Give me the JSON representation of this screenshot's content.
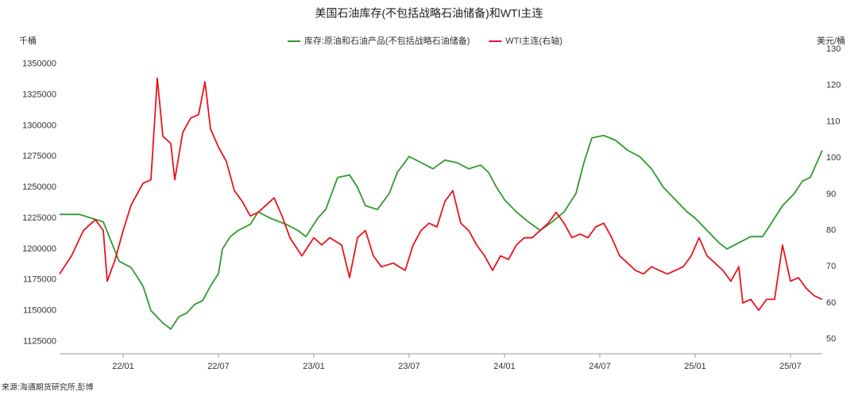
{
  "chart_data": {
    "type": "line",
    "title": "美国石油库存(不包括战略石油储备)和WTI主连",
    "ylabel": "千桶",
    "y2label": "美元/桶",
    "source": "来源:海通期货研究所,彭博",
    "xlim": [
      0,
      48
    ],
    "xticks": [
      {
        "value": 4,
        "label": "22/01"
      },
      {
        "value": 10,
        "label": "22/07"
      },
      {
        "value": 16,
        "label": "23/01"
      },
      {
        "value": 22,
        "label": "23/07"
      },
      {
        "value": 28,
        "label": "24/01"
      },
      {
        "value": 34,
        "label": "24/07"
      },
      {
        "value": 40,
        "label": "25/01"
      },
      {
        "value": 46,
        "label": "25/07"
      }
    ],
    "ylim": [
      1115000,
      1362000
    ],
    "yticks": [
      1125000,
      1150000,
      1175000,
      1200000,
      1225000,
      1250000,
      1275000,
      1300000,
      1325000,
      1350000
    ],
    "y2lim": [
      46,
      130
    ],
    "y2ticks": [
      50,
      60,
      70,
      80,
      90,
      100,
      110,
      120,
      130
    ],
    "legend": "top",
    "series": [
      {
        "name": "库存:原油和石油产品(不包括战略石油储备)",
        "color": "#2e9a2e",
        "x": [
          0,
          1.25,
          2,
          2.75,
          3.75,
          4.5,
          5.25,
          5.75,
          6.5,
          7,
          7.5,
          8,
          8.5,
          9,
          9.5,
          10,
          10.25,
          10.75,
          11.25,
          12,
          12.5,
          13.25,
          14.25,
          15,
          15.5,
          16.25,
          16.75,
          17.5,
          18.25,
          18.75,
          19.25,
          20,
          20.75,
          21.25,
          22,
          22.75,
          23.5,
          24.25,
          25,
          25.75,
          26.5,
          27,
          27.5,
          28,
          28.75,
          29.5,
          30.25,
          31,
          31.75,
          32.5,
          33,
          33.5,
          34.25,
          35,
          35.75,
          36.5,
          37.25,
          38,
          38.75,
          39.5,
          40,
          40.75,
          41.5,
          42,
          42.75,
          43.5,
          44.25,
          44.75,
          45.5,
          46.25,
          46.75,
          47.25,
          48
        ],
        "values": [
          1228000,
          1228000,
          1225000,
          1222000,
          1190000,
          1185000,
          1170000,
          1150000,
          1140000,
          1135000,
          1145000,
          1148000,
          1155000,
          1158000,
          1170000,
          1180000,
          1200000,
          1210000,
          1215000,
          1220000,
          1230000,
          1225000,
          1220000,
          1215000,
          1210000,
          1225000,
          1232000,
          1258000,
          1260000,
          1250000,
          1235000,
          1232000,
          1245000,
          1262000,
          1275000,
          1270000,
          1265000,
          1272000,
          1270000,
          1265000,
          1268000,
          1262000,
          1250000,
          1240000,
          1230000,
          1222000,
          1215000,
          1222000,
          1230000,
          1245000,
          1270000,
          1290000,
          1292000,
          1288000,
          1280000,
          1275000,
          1265000,
          1250000,
          1240000,
          1230000,
          1225000,
          1215000,
          1205000,
          1200000,
          1205000,
          1210000,
          1210000,
          1220000,
          1235000,
          1245000,
          1255000,
          1258000,
          1280000
        ]
      },
      {
        "name": "WTI主连(右轴)",
        "color": "#e8141b",
        "axis": "y2",
        "x": [
          0,
          0.75,
          1.5,
          2.25,
          2.75,
          3,
          3.5,
          4,
          4.5,
          5.25,
          5.75,
          6.15,
          6.5,
          7,
          7.25,
          7.75,
          8.25,
          8.75,
          9.15,
          9.5,
          10,
          10.5,
          11,
          11.5,
          12,
          12.5,
          13,
          13.5,
          14,
          14.5,
          15.25,
          16,
          16.5,
          17,
          17.75,
          18.25,
          18.75,
          19.25,
          19.75,
          20.25,
          21,
          21.75,
          22.25,
          22.75,
          23.25,
          23.75,
          24.25,
          24.75,
          25.25,
          25.75,
          26.25,
          26.75,
          27.25,
          27.75,
          28.25,
          28.75,
          29.25,
          29.75,
          30.25,
          30.75,
          31.25,
          31.75,
          32.25,
          32.75,
          33.25,
          33.75,
          34.25,
          34.75,
          35.25,
          35.75,
          36.25,
          36.75,
          37.25,
          37.75,
          38.25,
          38.75,
          39.25,
          39.75,
          40.25,
          40.75,
          41.25,
          41.75,
          42.25,
          42.75,
          43,
          43.5,
          44,
          44.5,
          45,
          45.5,
          46,
          46.5,
          47,
          47.5,
          48
        ],
        "values": [
          68,
          73,
          80,
          83,
          80,
          66,
          72,
          80,
          87,
          93,
          94,
          122,
          106,
          104,
          94,
          107,
          111,
          112,
          121,
          108,
          103,
          99,
          91,
          88,
          84,
          85,
          87,
          89,
          84,
          78,
          73,
          78,
          76,
          78,
          76,
          67,
          78,
          80,
          73,
          70,
          71,
          69,
          76,
          80,
          82,
          81,
          88,
          91,
          82,
          80,
          76,
          73,
          69,
          73,
          72,
          76,
          78,
          78,
          80,
          82,
          85,
          82,
          78,
          79,
          78,
          81,
          82,
          78,
          73,
          71,
          69,
          68,
          70,
          69,
          68,
          69,
          70,
          73,
          78,
          73,
          71,
          69,
          66,
          70,
          60,
          61,
          58,
          61,
          61,
          76,
          66,
          67,
          64,
          62,
          61
        ]
      }
    ]
  }
}
